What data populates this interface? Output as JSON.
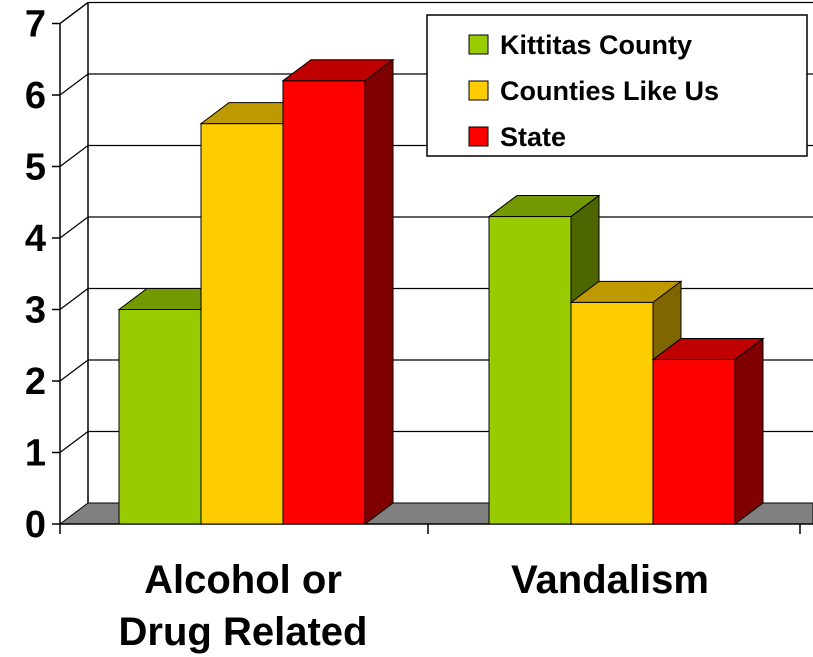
{
  "chart_data": {
    "type": "bar",
    "style": "3d-clustered-column",
    "categories": [
      [
        "Alcohol or",
        "Drug Related"
      ],
      [
        "Vandalism"
      ]
    ],
    "series": [
      {
        "name": "Kittitas County",
        "values": [
          3.0,
          4.3
        ],
        "color": "#99CC00"
      },
      {
        "name": "Counties Like Us",
        "values": [
          5.6,
          3.1
        ],
        "color": "#FFCC00"
      },
      {
        "name": "State",
        "values": [
          6.2,
          2.3
        ],
        "color": "#FF0000"
      }
    ],
    "ylim": [
      0,
      7
    ],
    "yticks": [
      0,
      1,
      2,
      3,
      4,
      5,
      6,
      7
    ],
    "grid": true,
    "legend_position": "top-right",
    "floor_color": "#808080"
  }
}
